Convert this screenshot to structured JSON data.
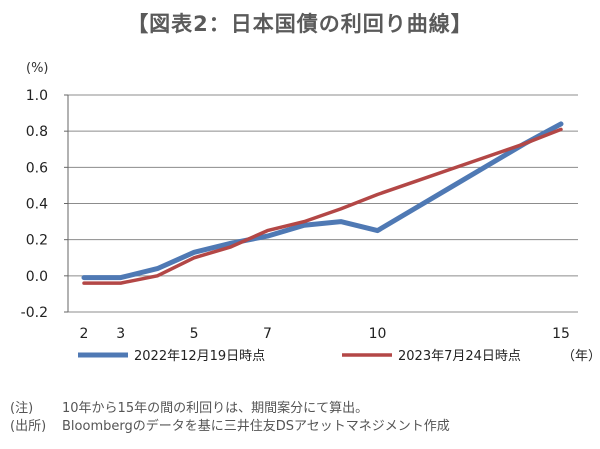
{
  "title": "【図表2：日本国債の利回り曲線】",
  "chart_data": {
    "type": "line",
    "y_unit": "(%)",
    "x_unit": "（年）",
    "xlim": [
      2,
      15
    ],
    "ylim": [
      -0.2,
      1.0
    ],
    "x_ticks": [
      2,
      3,
      5,
      7,
      10,
      15
    ],
    "y_ticks": [
      -0.2,
      0.0,
      0.2,
      0.4,
      0.6,
      0.8,
      1.0
    ],
    "y_tick_labels": [
      "-0.2",
      "0.0",
      "0.2",
      "0.4",
      "0.6",
      "0.8",
      "1.0"
    ],
    "grid": true,
    "legend_position": "bottom",
    "series": [
      {
        "name": "2022年12月19日時点",
        "color": "#4f79b4",
        "x": [
          2,
          3,
          4,
          5,
          6,
          7,
          8,
          9,
          10,
          11,
          12,
          13,
          14,
          15
        ],
        "values": [
          -0.01,
          -0.01,
          0.04,
          0.13,
          0.18,
          0.22,
          0.28,
          0.3,
          0.25,
          0.37,
          0.49,
          0.61,
          0.73,
          0.84
        ]
      },
      {
        "name": "2023年7月24日時点",
        "color": "#b34746",
        "x": [
          2,
          3,
          4,
          5,
          6,
          7,
          8,
          9,
          10,
          11,
          12,
          13,
          14,
          15
        ],
        "values": [
          -0.04,
          -0.04,
          0.0,
          0.1,
          0.16,
          0.25,
          0.3,
          0.37,
          0.45,
          0.52,
          0.59,
          0.66,
          0.73,
          0.81
        ]
      }
    ]
  },
  "notes": [
    {
      "label": "(注)",
      "text": "10年から15年の間の利回りは、期間案分にて算出。"
    },
    {
      "label": "(出所)",
      "text": "Bloombergのデータを基に三井住友DSアセットマネジメント作成"
    }
  ]
}
